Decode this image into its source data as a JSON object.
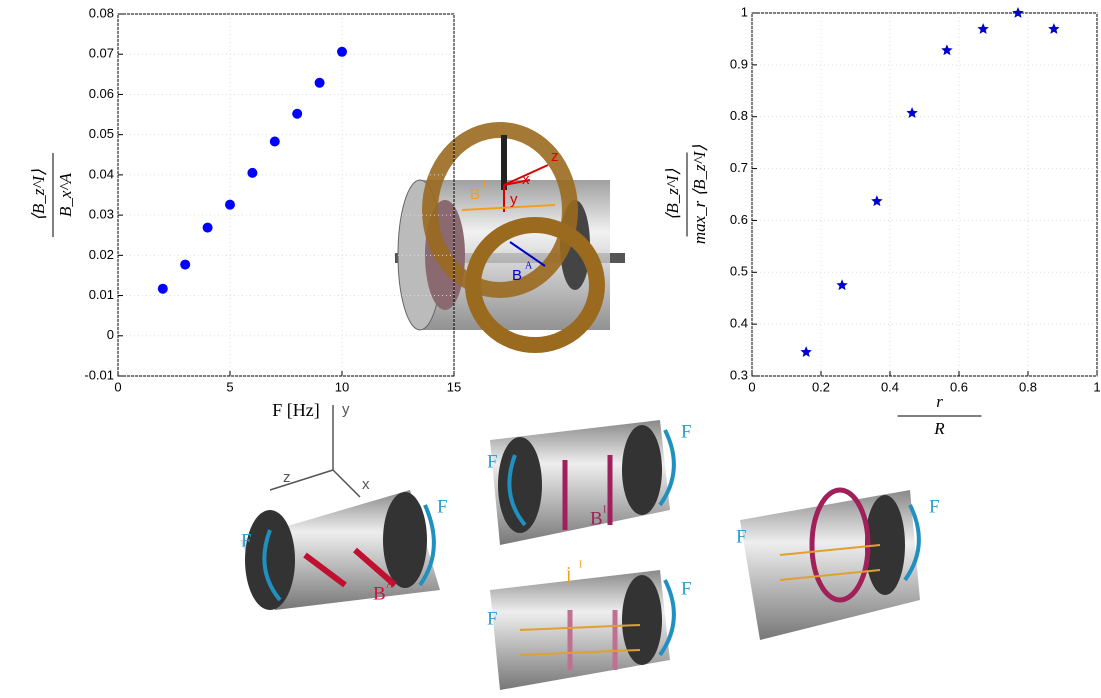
{
  "chart_data": [
    {
      "type": "scatter",
      "marker": "circle",
      "color": "#0000ff",
      "grid": true,
      "xlabel": "F [Hz]",
      "ylabel": {
        "numerator": "⟨B_z^I⟩",
        "denominator": "B_x^A"
      },
      "x": [
        2,
        3,
        4,
        5,
        6,
        7,
        8,
        9,
        10
      ],
      "values": [
        0.0117,
        0.0177,
        0.0269,
        0.0326,
        0.0405,
        0.0483,
        0.0552,
        0.0629,
        0.0706
      ],
      "xlim": [
        0,
        15
      ],
      "xticks": [
        0,
        5,
        10,
        15
      ],
      "ylim": [
        -0.01,
        0.08
      ],
      "yticks": [
        -0.01,
        0,
        0.01,
        0.02,
        0.03,
        0.04,
        0.05,
        0.06,
        0.07,
        0.08
      ]
    },
    {
      "type": "scatter",
      "marker": "star",
      "color": "#0000cc",
      "grid": true,
      "xlabel": {
        "numerator": "r",
        "denominator": "R"
      },
      "ylabel": {
        "numerator": "⟨B_z^I⟩",
        "denominator": "max_r ⟨B_z^I⟩"
      },
      "x": [
        0.157,
        0.261,
        0.362,
        0.464,
        0.565,
        0.67,
        0.771,
        0.875
      ],
      "values": [
        0.346,
        0.475,
        0.637,
        0.807,
        0.928,
        0.969,
        1.0,
        0.969
      ],
      "xlim": [
        0,
        1
      ],
      "xticks": [
        0,
        0.2,
        0.4,
        0.6,
        0.8,
        1
      ],
      "ylim": [
        0.3,
        1
      ],
      "yticks": [
        0.3,
        0.4,
        0.5,
        0.6,
        0.7,
        0.8,
        0.9,
        1
      ]
    }
  ],
  "diagram": {
    "labels": [
      {
        "text": "z"
      },
      {
        "text": "x"
      },
      {
        "text": "y"
      },
      {
        "text": "B",
        "sup": "I"
      },
      {
        "text": "B",
        "sup": "A"
      },
      {
        "text": "y"
      },
      {
        "text": "z"
      },
      {
        "text": "x"
      },
      {
        "text": "F"
      },
      {
        "text": "F"
      },
      {
        "text": "B",
        "sup": "A"
      },
      {
        "text": "F"
      },
      {
        "text": "F"
      },
      {
        "text": "B",
        "sup": "I"
      },
      {
        "text": "j",
        "sup": "I"
      },
      {
        "text": "F"
      },
      {
        "text": "F"
      },
      {
        "text": "F"
      },
      {
        "text": "F"
      }
    ]
  }
}
